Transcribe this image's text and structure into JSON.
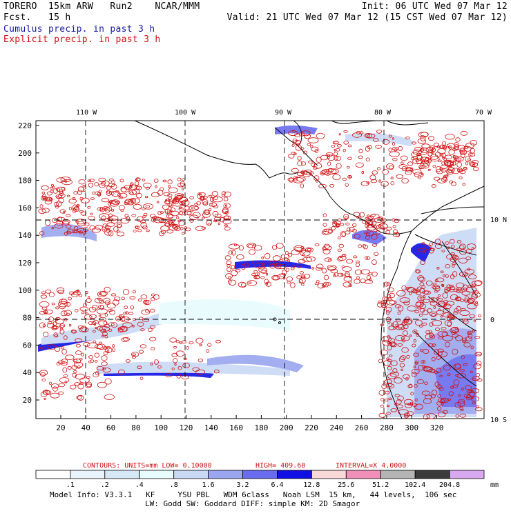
{
  "header": {
    "left_line1": "TORERO  15km ARW   Run2    NCAR/MMM",
    "left_line2": "Fcst.   15 h",
    "right_line1": "Init: 06 UTC Wed 07 Mar 12",
    "right_line2": "Valid: 21 UTC Wed 07 Mar 12 (15 CST Wed 07 Mar 12)",
    "legend_blue": "Cumulus precip. in past 3 h",
    "legend_red": "Explicit precip. in past 3 h"
  },
  "map": {
    "lon_labels": [
      "110 W",
      "100 W",
      "90 W",
      "80 W",
      "70 W"
    ],
    "lat_labels": [
      "10 N",
      "0",
      "10 S"
    ],
    "x_ticks": [
      "20",
      "40",
      "60",
      "80",
      "100",
      "120",
      "140",
      "160",
      "180",
      "200",
      "220",
      "240",
      "260",
      "280",
      "300",
      "320"
    ],
    "y_ticks": [
      "220",
      "200",
      "180",
      "160",
      "140",
      "120",
      "100",
      "80",
      "60",
      "40",
      "20"
    ],
    "colors": {
      "land": "#000000",
      "explicit": "#d01010",
      "cumulus": "#1a1aff",
      "grid": "#000000"
    }
  },
  "contour_info": {
    "contours": "CONTOURS:  UNITS=mm  LOW= 0.10000",
    "high": "HIGH=  409.60",
    "interval": "INTERVAL=X  4.0000"
  },
  "colorbar": {
    "labels": [
      ".1",
      ".2",
      ".4",
      ".8",
      "1.6",
      "3.2",
      "6.4",
      "12.8",
      "25.6",
      "51.2",
      "102.4",
      "204.8"
    ],
    "unit": "mm",
    "colors": [
      "#ffffff",
      "#eaf2fb",
      "#d6e8f6",
      "#e8fbfd",
      "#c9d9f5",
      "#9aa6ef",
      "#6a6cf0",
      "#1010e6",
      "#f8d8d8",
      "#f090b8",
      "#b4b4b4",
      "#3a3a3a",
      "#d8a8f0"
    ]
  },
  "footer": {
    "line1": "Model Info: V3.3.1   KF     YSU PBL   WDM 6class   Noah LSM  15 km,   44 levels,  106 sec",
    "line2": "LW: Godd SW: Goddard DIFF: simple KM: 2D Smagor"
  }
}
